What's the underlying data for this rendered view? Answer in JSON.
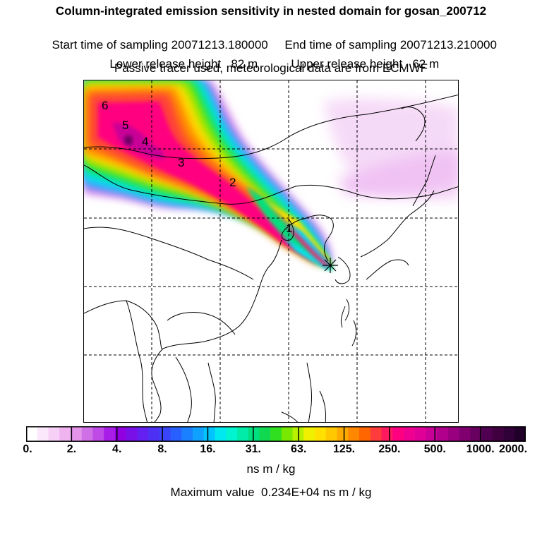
{
  "header": {
    "title": "Column-integrated emission sensitivity in nested domain for gosan_200712",
    "start_label": "Start time of sampling",
    "start_value": "20071213.180000",
    "end_label": "End time of sampling",
    "end_value": "20071213.210000",
    "lower_label": "Lower release height",
    "lower_value": "82 m",
    "upper_label": "Upper release height",
    "upper_value": "62 m",
    "subtitle": "Passive tracer used, meteorological data are from ECMWF"
  },
  "map": {
    "plume_labels": [
      "1",
      "2",
      "3",
      "4",
      "5",
      "6"
    ],
    "receptor_marker": "star-marker"
  },
  "colorbar": {
    "ticks": [
      "0.",
      "2.",
      "4.",
      "8.",
      "16.",
      "31.",
      "63.",
      "125.",
      "250.",
      "500.",
      "1000.",
      "2000."
    ],
    "colors": [
      "#ffffff",
      "#fbe8fb",
      "#f6d0f6",
      "#efb4f0",
      "#e495ea",
      "#d070e6",
      "#bf4ae6",
      "#a81ee8",
      "#9000e0",
      "#7a10e8",
      "#6420f0",
      "#4e30f4",
      "#3a44f8",
      "#2860ff",
      "#1a80ff",
      "#10a0ff",
      "#00c4ff",
      "#00e8f0",
      "#00f4d0",
      "#00eca8",
      "#00e080",
      "#10d850",
      "#30e020",
      "#78e800",
      "#b8f000",
      "#f0f000",
      "#ffe000",
      "#ffc800",
      "#ffaa00",
      "#ff8800",
      "#ff6600",
      "#ff3c3c",
      "#ff1a60",
      "#ff0080",
      "#f00090",
      "#e00098",
      "#c80098",
      "#b0008c",
      "#980080",
      "#800070",
      "#680060",
      "#500050",
      "#400040",
      "#300038",
      "#200028"
    ],
    "units": "ns m / kg",
    "max_label": "Maximum value",
    "max_value": "0.234E+04 ns m / kg"
  }
}
